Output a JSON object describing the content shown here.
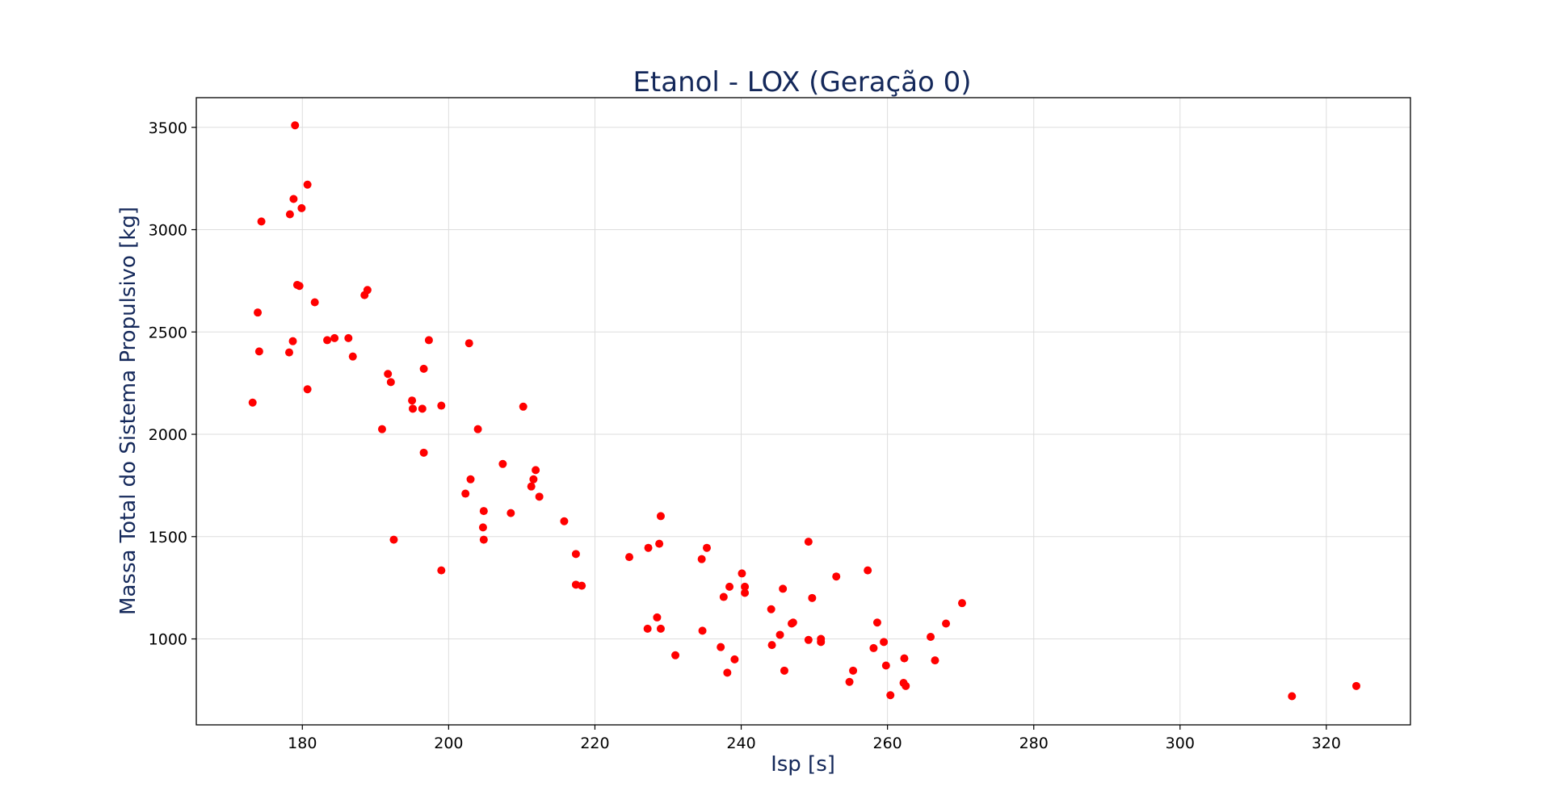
{
  "colors": {
    "title": "#14285a",
    "axis_label": "#14285a",
    "points": "#ff0000",
    "grid": "#dddddd",
    "frame": "#000000"
  },
  "chart_data": {
    "type": "scatter",
    "title": "Etanol - LOX (Geração 0)",
    "xlabel": "Isp [s]",
    "ylabel": "Massa Total do Sistema Propulsivo [kg]",
    "xlim": [
      165.5,
      331.5
    ],
    "ylim": [
      580,
      3645
    ],
    "xticks": [
      180,
      200,
      220,
      240,
      260,
      280,
      300,
      320
    ],
    "yticks": [
      1000,
      1500,
      2000,
      2500,
      3000,
      3500
    ],
    "grid": true,
    "x": [
      179.0,
      180.7,
      178.8,
      178.3,
      179.9,
      174.4,
      173.9,
      188.9,
      188.5,
      181.7,
      179.3,
      179.6,
      174.1,
      178.7,
      178.2,
      183.4,
      184.4,
      186.3,
      186.9,
      197.3,
      202.8,
      173.2,
      180.7,
      191.7,
      192.1,
      196.6,
      195.0,
      195.1,
      196.4,
      199.0,
      210.2,
      190.9,
      204.0,
      196.6,
      207.4,
      211.9,
      211.6,
      211.3,
      203.0,
      202.3,
      212.4,
      204.8,
      208.5,
      204.7,
      204.8,
      192.5,
      199.0,
      215.8,
      217.4,
      217.4,
      218.2,
      229.0,
      249.2,
      235.3,
      228.8,
      227.3,
      224.7,
      234.6,
      240.1,
      253.0,
      257.3,
      245.7,
      238.4,
      240.5,
      240.5,
      249.7,
      237.6,
      270.2,
      244.1,
      228.5,
      247.1,
      246.9,
      258.6,
      268.0,
      227.2,
      229.0,
      234.7,
      245.3,
      265.9,
      250.9,
      250.9,
      249.2,
      244.2,
      259.5,
      237.2,
      258.1,
      231.0,
      239.1,
      262.3,
      266.5,
      259.8,
      255.3,
      245.9,
      238.1,
      262.2,
      262.5,
      254.8,
      260.4,
      315.3,
      324.1
    ],
    "y": [
      3510,
      3220,
      3150,
      3075,
      3105,
      3040,
      2595,
      2705,
      2680,
      2645,
      2730,
      2725,
      2405,
      2455,
      2400,
      2460,
      2470,
      2470,
      2380,
      2460,
      2445,
      2155,
      2220,
      2295,
      2255,
      2320,
      2165,
      2125,
      2125,
      2140,
      2135,
      2025,
      2025,
      1910,
      1855,
      1825,
      1780,
      1745,
      1780,
      1710,
      1695,
      1625,
      1615,
      1545,
      1485,
      1485,
      1335,
      1575,
      1415,
      1265,
      1260,
      1600,
      1475,
      1445,
      1465,
      1445,
      1400,
      1390,
      1320,
      1305,
      1335,
      1245,
      1255,
      1255,
      1225,
      1200,
      1205,
      1175,
      1145,
      1105,
      1080,
      1075,
      1080,
      1075,
      1050,
      1050,
      1040,
      1020,
      1010,
      1000,
      985,
      995,
      970,
      985,
      960,
      955,
      920,
      900,
      905,
      895,
      870,
      845,
      845,
      835,
      785,
      770,
      790,
      725,
      720,
      770
    ]
  }
}
